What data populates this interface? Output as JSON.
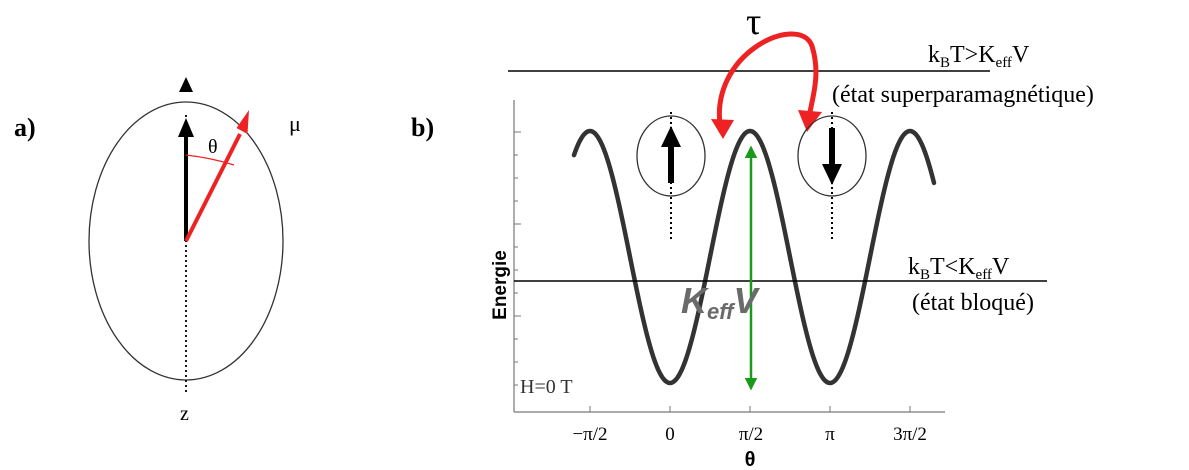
{
  "panel_a": {
    "label": "a)",
    "angle_symbol": "θ",
    "moment_symbol": "μ",
    "axis_symbol": "z"
  },
  "panel_b": {
    "label": "b)",
    "tau": "τ",
    "upper_regime": {
      "condition_k": "k",
      "condition_sub_b": "B",
      "condition_t": "T>K",
      "condition_sub_eff": "eff",
      "condition_v": "V",
      "state": "(état superparamagnétique)"
    },
    "lower_regime": {
      "condition_k": "k",
      "condition_sub_b": "B",
      "condition_t": "T<K",
      "condition_sub_eff": "eff",
      "condition_v": "V",
      "state": "(état bloqué)"
    },
    "barrier_label": {
      "k": "K",
      "sub": "eff",
      "v": "V"
    },
    "field_label": "H=0 T",
    "y_axis_title": "Energie",
    "x_axis_title": "θ",
    "x_ticks": [
      "−π/2",
      "0",
      "π/2",
      "π",
      "3π/2"
    ]
  },
  "colors": {
    "moment_arrow": "#ee2222",
    "tau_arrow": "#ee2222",
    "barrier_arrow": "#1a9a1a",
    "curve": "#333333"
  }
}
